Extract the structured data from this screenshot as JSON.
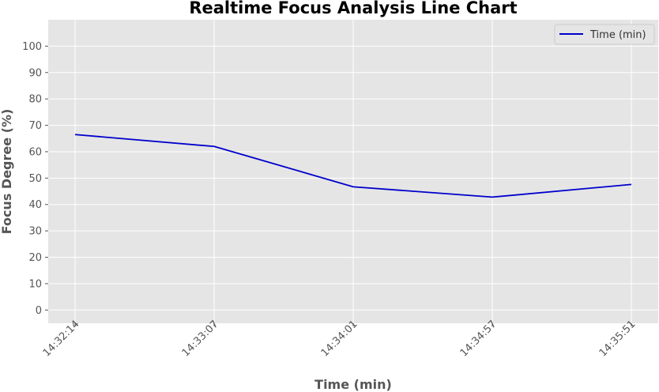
{
  "chart_data": {
    "type": "line",
    "title": "Realtime Focus Analysis Line Chart",
    "xlabel": "Time (min)",
    "ylabel": "Focus Degree (%)",
    "categories": [
      "14:32:14",
      "14:33:07",
      "14:34:01",
      "14:34:57",
      "14:35:51"
    ],
    "series": [
      {
        "name": "Time (min)",
        "values": [
          66.5,
          62.0,
          46.7,
          42.8,
          47.6
        ],
        "color": "#0000cc"
      }
    ],
    "ylim": [
      -5,
      110
    ],
    "yticks": [
      0,
      10,
      20,
      30,
      40,
      50,
      60,
      70,
      80,
      90,
      100
    ],
    "grid": true,
    "legend_position": "top-right",
    "background_color": "#e5e5e5",
    "grid_color": "#ffffff"
  }
}
